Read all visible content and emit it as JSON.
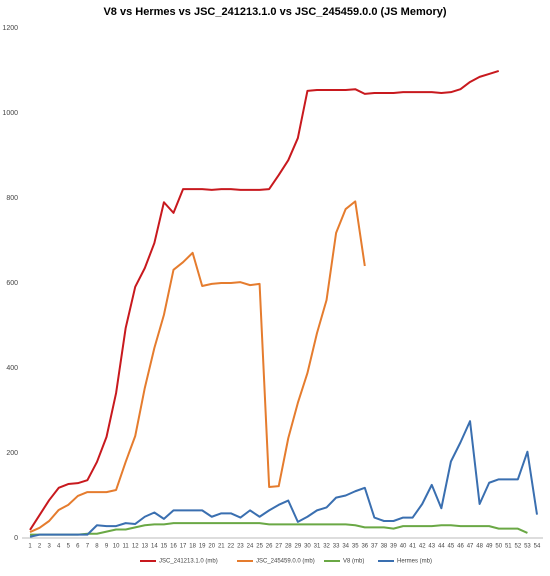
{
  "chart_data": {
    "type": "line",
    "title": "V8 vs Hermes vs  JSC_241213.1.0 vs JSC_245459.0.0  (JS Memory)",
    "categories": [
      1,
      2,
      3,
      4,
      5,
      6,
      7,
      8,
      9,
      10,
      11,
      12,
      13,
      14,
      15,
      16,
      17,
      18,
      19,
      20,
      21,
      22,
      23,
      24,
      25,
      26,
      27,
      28,
      29,
      30,
      31,
      32,
      33,
      34,
      35,
      36,
      37,
      38,
      39,
      40,
      41,
      42,
      43,
      44,
      45,
      46,
      47,
      48,
      49,
      50,
      51,
      52,
      53,
      54
    ],
    "ylim": [
      0,
      1200
    ],
    "yticks": [
      0,
      200,
      400,
      600,
      800,
      1000,
      1200
    ],
    "grid": false,
    "legend": "bottom",
    "series": [
      {
        "name": "JSC_241213.1.0 (mb)",
        "color": "#c8191e",
        "values": [
          19,
          54,
          89,
          118,
          127,
          129,
          136,
          179,
          238,
          341,
          494,
          591,
          635,
          694,
          790,
          765,
          821,
          821,
          821,
          819,
          821,
          821,
          819,
          819,
          819,
          821,
          854,
          889,
          941,
          1052,
          1054,
          1054,
          1054,
          1054,
          1056,
          1045,
          1047,
          1047,
          1047,
          1049,
          1049,
          1049,
          1049,
          1047,
          1049,
          1056,
          1073,
          1085,
          1092,
          1099,
          null,
          null,
          null,
          null
        ]
      },
      {
        "name": "JSC_245459.0.0 (mb)",
        "color": "#e57c2e",
        "values": [
          14,
          24,
          40,
          66,
          78,
          99,
          108,
          108,
          108,
          113,
          179,
          240,
          353,
          447,
          525,
          631,
          649,
          671,
          593,
          598,
          600,
          600,
          602,
          595,
          598,
          120,
          122,
          235,
          318,
          388,
          482,
          560,
          718,
          774,
          792,
          640,
          null,
          null,
          null,
          null,
          null,
          null,
          null,
          null,
          null,
          null,
          null,
          null,
          null,
          null,
          null,
          null,
          null,
          null
        ]
      },
      {
        "name": "V8 (mb)",
        "color": "#6aa845",
        "values": [
          8,
          8,
          8,
          8,
          8,
          8,
          10,
          10,
          15,
          20,
          20,
          25,
          30,
          32,
          32,
          35,
          35,
          35,
          35,
          35,
          35,
          35,
          35,
          35,
          35,
          32,
          32,
          32,
          32,
          32,
          32,
          32,
          32,
          32,
          30,
          25,
          25,
          25,
          22,
          28,
          28,
          28,
          28,
          30,
          30,
          28,
          28,
          28,
          28,
          22,
          22,
          22,
          12,
          null
        ]
      },
      {
        "name": "Hermes (mb)",
        "color": "#3a6fb0",
        "values": [
          3,
          8,
          8,
          8,
          8,
          8,
          8,
          30,
          28,
          28,
          35,
          33,
          50,
          60,
          45,
          65,
          65,
          65,
          65,
          50,
          58,
          58,
          48,
          65,
          50,
          65,
          78,
          88,
          38,
          50,
          65,
          72,
          95,
          100,
          110,
          118,
          48,
          40,
          40,
          48,
          48,
          80,
          125,
          70,
          180,
          225,
          275,
          80,
          130,
          138,
          138,
          138,
          203,
          55
        ]
      }
    ]
  }
}
